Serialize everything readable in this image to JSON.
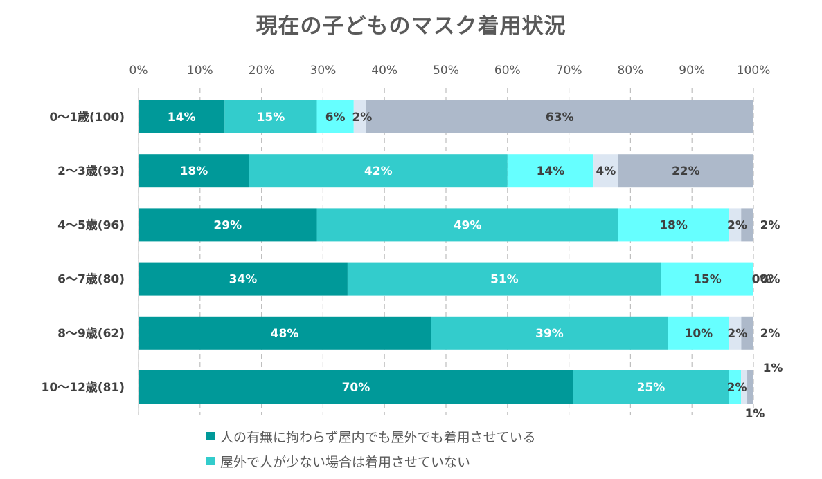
{
  "chart_data": {
    "type": "bar",
    "orientation": "horizontal",
    "stacked": true,
    "title": "現在の子どものマスク着用状況",
    "xlim": [
      0,
      100
    ],
    "x_ticks": [
      "0%",
      "10%",
      "20%",
      "30%",
      "40%",
      "50%",
      "60%",
      "70%",
      "80%",
      "90%",
      "100%"
    ],
    "grid": true,
    "categories": [
      "0〜1歳(100)",
      "2〜3歳(93)",
      "4〜5歳(96)",
      "6〜7歳(80)",
      "8〜9歳(62)",
      "10〜12歳(81)"
    ],
    "series": [
      {
        "name": "人の有無に拘わらず屋内でも屋外でも着用させている",
        "color": "#009999",
        "values": [
          14,
          18,
          29,
          34,
          48,
          70
        ],
        "labels": [
          "14%",
          "18%",
          "29%",
          "34%",
          "48%",
          "70%"
        ]
      },
      {
        "name": "屋外で人が少ない場合は着用させていない",
        "color": "#33CCCC",
        "values": [
          15,
          42,
          49,
          51,
          39,
          25
        ],
        "labels": [
          "15%",
          "42%",
          "49%",
          "51%",
          "39%",
          "25%"
        ]
      },
      {
        "color": "#66FFFF",
        "values": [
          6,
          14,
          18,
          15,
          10,
          2
        ],
        "labels": [
          "6%",
          "14%",
          "18%",
          "15%",
          "10%",
          "2%"
        ]
      },
      {
        "color": "#DCE6F2",
        "values": [
          2,
          4,
          2,
          0,
          2,
          1
        ],
        "labels": [
          "2%",
          "4%",
          "2%",
          "0%",
          "2%",
          "1%"
        ]
      },
      {
        "color": "#ADB9CA",
        "values": [
          63,
          22,
          2,
          0,
          2,
          1
        ],
        "labels": [
          "63%",
          "22%",
          "2%",
          "0%",
          "2%",
          "1%"
        ]
      }
    ],
    "legend_position": "bottom"
  }
}
